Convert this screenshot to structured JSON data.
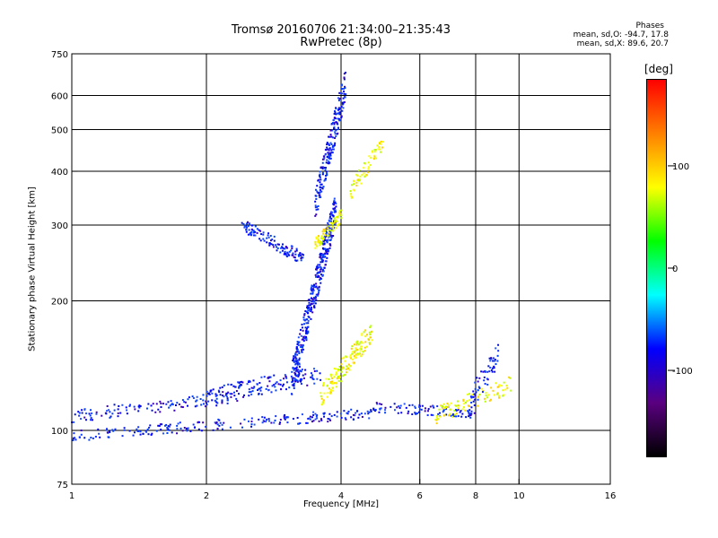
{
  "header": {
    "title_line1": "Tromsø 20160706 21:34:00–21:35:43",
    "title_line2": "RwPretec (8p)",
    "stats_title": "Phases",
    "stats_o": "mean, sd,O: -94.7, 17.8",
    "stats_x": "mean, sd,X:  89.6, 20.7"
  },
  "colorbar": {
    "unit": "[deg]",
    "ticks": [
      {
        "value": 100,
        "label": "100"
      },
      {
        "value": 0,
        "label": "0"
      },
      {
        "value": -100,
        "label": "-100"
      }
    ],
    "range": [
      -185,
      185
    ],
    "stops": [
      "#000000",
      "#5a0080",
      "#0000ff",
      "#00ffff",
      "#00ff00",
      "#ffff00",
      "#ff8000",
      "#ff0000"
    ]
  },
  "chart_data": {
    "type": "scatter",
    "xlabel": "Frequency [MHz]",
    "ylabel": "Stationary phase Virtual Height [km]",
    "xscale": "log",
    "yscale": "log",
    "xlim": [
      1,
      16
    ],
    "ylim": [
      75,
      750
    ],
    "xticks": [
      1,
      2,
      4,
      6,
      8,
      10,
      16
    ],
    "yticks": [
      75,
      100,
      200,
      300,
      400,
      500,
      600,
      750
    ],
    "xgrid": [
      2,
      4,
      6,
      8,
      10
    ],
    "ygrid": [
      100,
      200,
      300,
      400,
      500,
      600
    ],
    "traces": [
      {
        "name": "",
        "phase": -100,
        "x_range": [
          1.0,
          4.8
        ],
        "y_start": 97,
        "y_end": 110,
        "n": 220,
        "spread": 0.025
      },
      {
        "name": "",
        "phase": -100,
        "x_range": [
          1.0,
          2.4
        ],
        "y_start": 108,
        "y_end": 120,
        "n": 120,
        "spread": 0.03
      },
      {
        "name": "",
        "phase": -100,
        "x_range": [
          2.0,
          3.6
        ],
        "y_start": 120,
        "y_end": 135,
        "n": 160,
        "spread": 0.04
      },
      {
        "name": "",
        "phase": -120,
        "x_range": [
          3.1,
          3.9
        ],
        "y_start": 130,
        "y_end": 330,
        "n": 380,
        "spread": 0.08
      },
      {
        "name": "",
        "phase": -110,
        "x_range": [
          3.5,
          4.1
        ],
        "y_start": 330,
        "y_end": 640,
        "n": 200,
        "spread": 0.08
      },
      {
        "name": "",
        "phase": -105,
        "x_range": [
          2.4,
          3.3
        ],
        "y_start": 300,
        "y_end": 250,
        "n": 120,
        "spread": 0.03
      },
      {
        "name": "",
        "phase": 95,
        "x_range": [
          3.6,
          4.7
        ],
        "y_start": 120,
        "y_end": 170,
        "n": 150,
        "spread": 0.05
      },
      {
        "name": "",
        "phase": 95,
        "x_range": [
          3.5,
          4.0
        ],
        "y_start": 270,
        "y_end": 315,
        "n": 70,
        "spread": 0.03
      },
      {
        "name": "",
        "phase": 100,
        "x_range": [
          4.2,
          5.0
        ],
        "y_start": 360,
        "y_end": 470,
        "n": 60,
        "spread": 0.04
      },
      {
        "name": "",
        "phase": -100,
        "x_range": [
          4.8,
          8.0
        ],
        "y_start": 113,
        "y_end": 110,
        "n": 90,
        "spread": 0.025
      },
      {
        "name": "",
        "phase": 90,
        "x_range": [
          6.5,
          9.6
        ],
        "y_start": 108,
        "y_end": 128,
        "n": 90,
        "spread": 0.04
      },
      {
        "name": "",
        "phase": -95,
        "x_range": [
          7.8,
          9.0
        ],
        "y_start": 118,
        "y_end": 150,
        "n": 60,
        "spread": 0.06
      }
    ]
  }
}
